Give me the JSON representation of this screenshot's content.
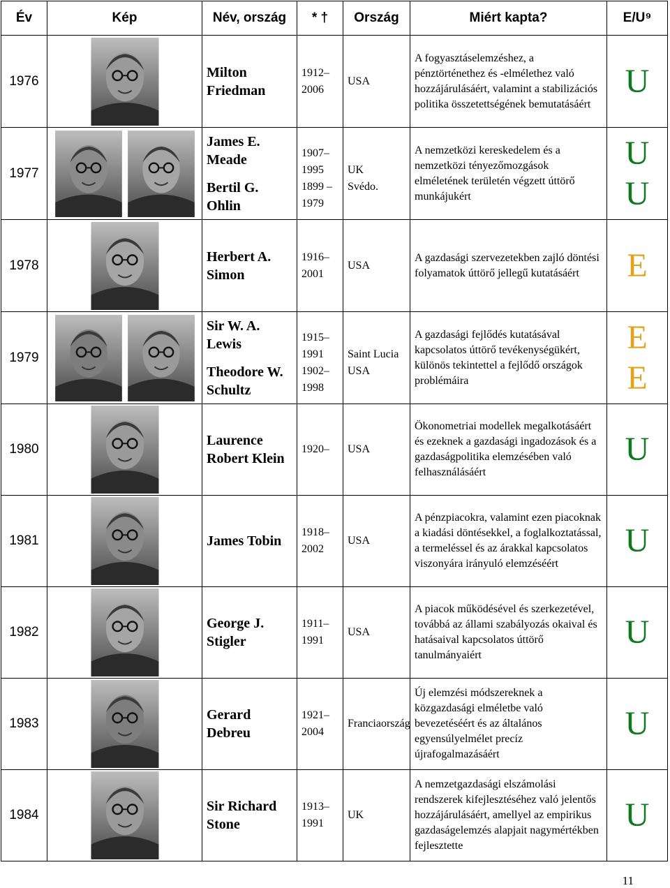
{
  "headers": [
    "Év",
    "Kép",
    "Név, ország",
    "*  †",
    "Ország",
    "Miért kapta?",
    "E/U⁹"
  ],
  "rows": [
    {
      "year": "1976",
      "names": [
        "Milton Friedman"
      ],
      "life": [
        "1912–\n2006"
      ],
      "country": [
        "USA"
      ],
      "reason": "A fogyasztáselemzéshez, a pénztörténethez és -elmélethez való hozzájárulásáért, valamint a stabilizációs politika összetettségének bemutatásáért",
      "cat": [
        "U"
      ]
    },
    {
      "year": "1977",
      "names": [
        "James E. Meade",
        "Bertil G. Ohlin"
      ],
      "life": [
        "1907–\n1995",
        "1899 –\n1979"
      ],
      "country": [
        "UK",
        "Svédo."
      ],
      "reason": "A nemzetközi kereskedelem és a nemzetközi tényezőmozgások elméletének területén végzett úttörő munkájukért",
      "cat": [
        "U",
        "U"
      ]
    },
    {
      "year": "1978",
      "names": [
        "Herbert A. Simon"
      ],
      "life": [
        "1916–\n2001"
      ],
      "country": [
        "USA"
      ],
      "reason": "A gazdasági szervezetekben zajló döntési folyamatok úttörő jellegű kutatásáért",
      "cat": [
        "E"
      ]
    },
    {
      "year": "1979",
      "names": [
        "Sir W. A. Lewis",
        "Theodore W. Schultz"
      ],
      "life": [
        "1915–\n1991",
        "1902–\n1998"
      ],
      "country": [
        "Saint Lucia",
        "USA"
      ],
      "reason": "A gazdasági fejlődés kutatásával kapcsolatos úttörő tevékenységükért, különös tekintettel a fejlődő országok problémáira",
      "cat": [
        "E",
        "E"
      ]
    },
    {
      "year": "1980",
      "names": [
        "Laurence Robert Klein"
      ],
      "life": [
        "1920–"
      ],
      "country": [
        "USA"
      ],
      "reason": "Ökonometriai modellek megalkotásáért és ezeknek a gazdasági ingadozások és a gazdaságpolitika elemzésében való felhasználásáért",
      "cat": [
        "U"
      ]
    },
    {
      "year": "1981",
      "names": [
        "James Tobin"
      ],
      "life": [
        "1918–\n2002"
      ],
      "country": [
        "USA"
      ],
      "reason": "A pénzpiacokra, valamint ezen piacoknak a kiadási döntésekkel, a foglalkoztatással, a termeléssel és az árakkal kapcsolatos viszonyára irányuló elemzéséért",
      "cat": [
        "U"
      ]
    },
    {
      "year": "1982",
      "names": [
        "George J. Stigler"
      ],
      "life": [
        "1911–\n1991"
      ],
      "country": [
        "USA"
      ],
      "reason": "A piacok működésével és szerkezetével, továbbá az állami szabályozás okaival és hatásaival kapcsolatos úttörő tanulmányaiért",
      "cat": [
        "U"
      ]
    },
    {
      "year": "1983",
      "names": [
        "Gerard Debreu"
      ],
      "life": [
        "1921–\n2004"
      ],
      "country": [
        "Franciaország"
      ],
      "reason": "Új elemzési módszereknek a közgazdasági elméletbe való bevezetéséért és az általános egyensúlyelmélet precíz újrafogalmazásáért",
      "cat": [
        "U"
      ]
    },
    {
      "year": "1984",
      "names": [
        "Sir Richard Stone"
      ],
      "life": [
        "1913–\n1991"
      ],
      "country": [
        "UK"
      ],
      "reason": "A nemzetgazdasági elszámolási rendszerek kifejlesztéséhez való jelentős hozzájárulásáért, amellyel az empirikus gazdaságelemzés alapjait nagymértékben fejlesztette",
      "cat": [
        "U"
      ]
    }
  ],
  "colors": {
    "U": "#0e7a1f",
    "E": "#e3a21a"
  },
  "page_number": "11"
}
